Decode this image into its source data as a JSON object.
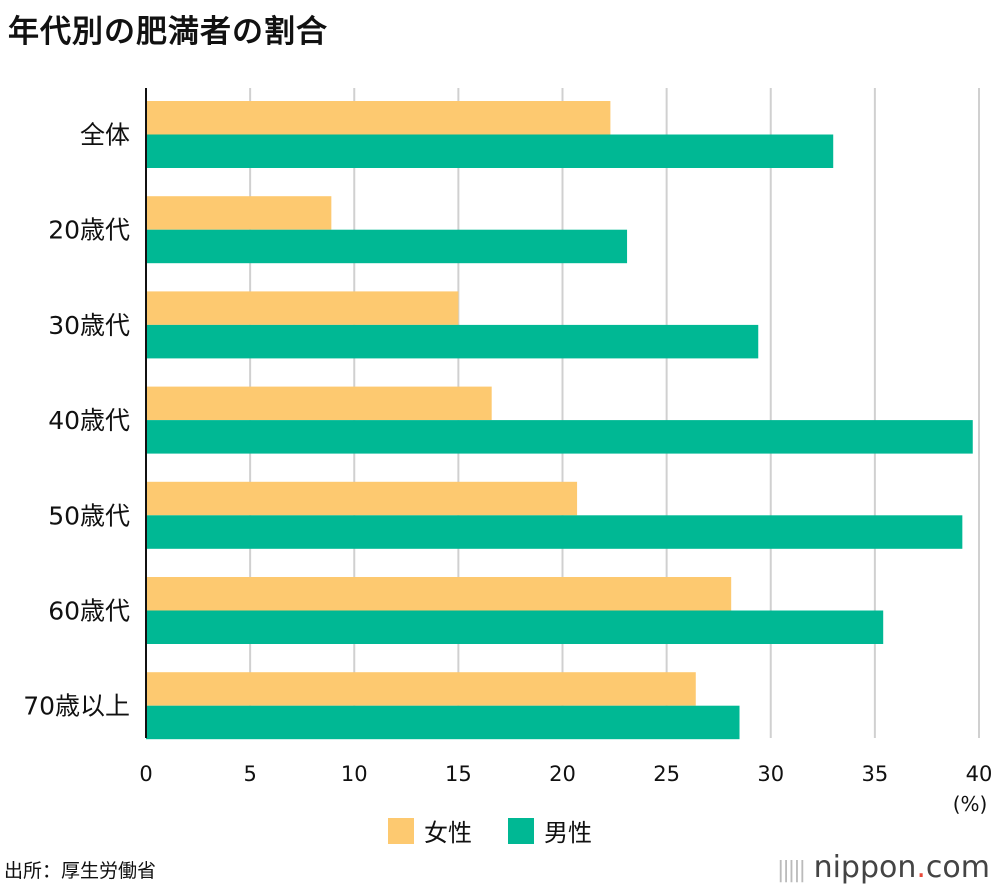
{
  "chart_data": {
    "type": "bar",
    "orientation": "horizontal",
    "title": "年代別の肥満者の割合",
    "categories": [
      "全体",
      "20歳代",
      "30歳代",
      "40歳代",
      "50歳代",
      "60歳代",
      "70歳以上"
    ],
    "series": [
      {
        "name": "女性",
        "color": "#FDC970",
        "values": [
          22.3,
          8.9,
          15.0,
          16.6,
          20.7,
          28.1,
          26.4
        ]
      },
      {
        "name": "男性",
        "color": "#00B894",
        "values": [
          33.0,
          23.1,
          29.4,
          39.7,
          39.2,
          35.4,
          28.5
        ]
      }
    ],
    "xlim": [
      0,
      40
    ],
    "xticks": [
      0,
      5,
      10,
      15,
      20,
      25,
      30,
      35,
      40
    ],
    "xunit": "(%)",
    "grid": true,
    "legend_position": "bottom"
  },
  "source": "出所：厚生労働省",
  "logo": {
    "name": "nippon",
    "dot": ".",
    "suffix": "com"
  }
}
